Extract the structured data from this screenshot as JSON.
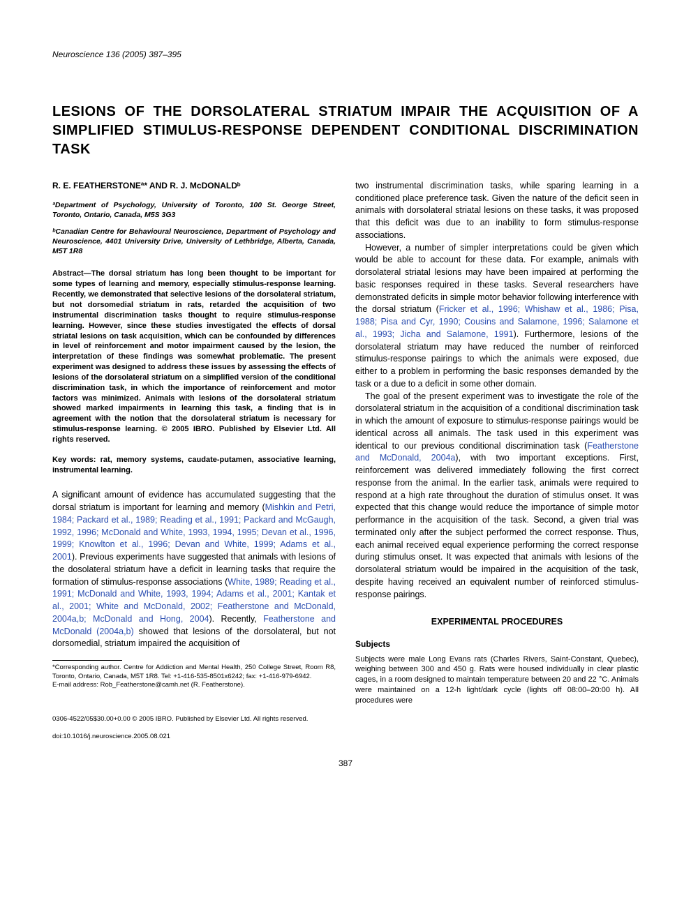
{
  "journal_ref": "Neuroscience 136 (2005) 387–395",
  "title": "LESIONS OF THE DORSOLATERAL STRIATUM IMPAIR THE ACQUISITION OF A SIMPLIFIED STIMULUS-RESPONSE DEPENDENT CONDITIONAL DISCRIMINATION TASK",
  "authors": "R. E. FEATHERSTONEª* AND R. J. McDONALDᵇ",
  "affil_a": "ªDepartment of Psychology, University of Toronto, 100 St. George Street, Toronto, Ontario, Canada, M5S 3G3",
  "affil_b": "ᵇCanadian Centre for Behavioural Neuroscience, Department of Psychology and Neuroscience, 4401 University Drive, University of Lethbridge, Alberta, Canada, M5T 1R8",
  "abstract": "Abstract—The dorsal striatum has long been thought to be important for some types of learning and memory, especially stimulus-response learning. Recently, we demonstrated that selective lesions of the dorsolateral striatum, but not dorsomedial striatum in rats, retarded the acquisition of two instrumental discrimination tasks thought to require stimulus-response learning. However, since these studies investigated the effects of dorsal striatal lesions on task acquisition, which can be confounded by differences in level of reinforcement and motor impairment caused by the lesion, the interpretation of these findings was somewhat problematic. The present experiment was designed to address these issues by assessing the effects of lesions of the dorsolateral striatum on a simplified version of the conditional discrimination task, in which the importance of reinforcement and motor factors was minimized. Animals with lesions of the dorsolateral striatum showed marked impairments in learning this task, a finding that is in agreement with the notion that the dorsolateral striatum is necessary for stimulus-response learning. © 2005 IBRO. Published by Elsevier Ltd. All rights reserved.",
  "keywords": "Key words: rat, memory systems, caudate-putamen, associative learning, instrumental learning.",
  "intro": {
    "p1_a": "A significant amount of evidence has accumulated suggesting that the dorsal striatum is important for learning and memory (",
    "p1_c1": "Mishkin and Petri, 1984; Packard et al., 1989; Reading et al., 1991; Packard and McGaugh, 1992, 1996; McDonald and White, 1993, 1994, 1995; Devan et al., 1996, 1999; Knowlton et al., 1996; Devan and White, 1999; Adams et al., 2001",
    "p1_b": "). Previous experiments have suggested that animals with lesions of the dosolateral striatum have a deficit in learning tasks that require the formation of stimulus-response associations (",
    "p1_c2": "White, 1989; Reading et al., 1991; McDonald and White, 1993, 1994; Adams et al., 2001; Kantak et al., 2001; White and McDonald, 2002; Featherstone and McDonald, 2004a,b; McDonald and Hong, 2004",
    "p1_d": "). Recently, ",
    "p1_c3": "Featherstone and McDonald (2004a,b)",
    "p1_e": " showed that lesions of the dorsolateral, but not dorsomedial, striatum impaired the acquisition of ",
    "p1_f": "two instrumental discrimination tasks, while sparing learning in a conditioned place preference task. Given the nature of the deficit seen in animals with dorsolateral striatal lesions on these tasks, it was proposed that this deficit was due to an inability to form stimulus-response associations.",
    "p2_a": "However, a number of simpler interpretations could be given which would be able to account for these data. For example, animals with dorsolateral striatal lesions may have been impaired at performing the basic responses required in these tasks. Several researchers have demonstrated deficits in simple motor behavior following interference with the dorsal striatum (",
    "p2_c1": "Fricker et al., 1996; Whishaw et al., 1986; Pisa, 1988; Pisa and Cyr, 1990; Cousins and Salamone, 1996; Salamone et al., 1993; Jicha and Salamone, 1991",
    "p2_b": "). Furthermore, lesions of the dorsolateral striatum may have reduced the number of reinforced stimulus-response pairings to which the animals were exposed, due either to a problem in performing the basic responses demanded by the task or a due to a deficit in some other domain.",
    "p3_a": "The goal of the present experiment was to investigate the role of the dorsolateral striatum in the acquisition of a conditional discrimination task in which the amount of exposure to stimulus-response pairings would be identical across all animals. The task used in this experiment was identical to our previous conditional discrimination task (",
    "p3_c1": "Featherstone and McDonald, 2004a",
    "p3_b": "), with two important exceptions. First, reinforcement was delivered immediately following the first correct response from the animal. In the earlier task, animals were required to respond at a high rate throughout the duration of stimulus onset. It was expected that this change would reduce the importance of simple motor performance in the acquisition of the task. Second, a given trial was terminated only after the subject performed the correct response. Thus, each animal received equal experience performing the correct response during stimulus onset. It was expected that animals with lesions of the dorsolateral striatum would be impaired in the acquisition of the task, despite having received an equivalent number of reinforced stimulus-response pairings."
  },
  "section_head": "EXPERIMENTAL PROCEDURES",
  "subhead_subjects": "Subjects",
  "subjects_text": "Subjects were male Long Evans rats (Charles Rivers, Saint-Constant, Quebec), weighing between 300 and 450 g. Rats were housed individually in clear plastic cages, in a room designed to maintain temperature between 20 and 22 °C. Animals were maintained on a 12-h light/dark cycle (lights off 08:00–20:00 h). All procedures were",
  "footnote_corr": "*Corresponding author. Centre for Addiction and Mental Health, 250 College Street, Room R8, Toronto, Ontario, Canada, M5T 1R8. Tel: +1-416-535-8501x6242; fax: +1-416-979-6942.",
  "footnote_email": "E-mail address: Rob_Featherstone@camh.net (R. Featherstone).",
  "copyright": "0306-4522/05$30.00+0.00 © 2005 IBRO. Published by Elsevier Ltd. All rights reserved.",
  "doi": "doi:10.1016/j.neuroscience.2005.08.021",
  "page_num": "387",
  "colors": {
    "citation": "#2a4db0",
    "text": "#000000",
    "background": "#ffffff"
  }
}
